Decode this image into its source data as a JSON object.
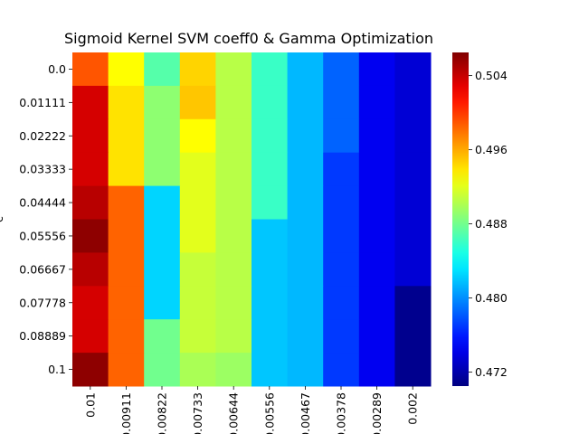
{
  "chart_data": {
    "type": "heatmap",
    "title": "Sigmoid Kernel SVM coeff0 & Gamma Optimization",
    "xlabel": "",
    "ylabel": "c",
    "x_tick_labels": [
      "0.01",
      "0.00911",
      "0.00822",
      "0.00733",
      "0.00644",
      "0.00556",
      "0.00467",
      "0.00378",
      "0.00289",
      "0.002"
    ],
    "y_tick_labels": [
      "0.0",
      "0.01111",
      "0.02222",
      "0.03333",
      "0.04444",
      "0.05556",
      "0.06667",
      "0.07778",
      "0.08889",
      "0.1"
    ],
    "colormap": "jet",
    "vmin": 0.4705,
    "vmax": 0.5065,
    "colorbar_ticks": [
      0.472,
      0.48,
      0.488,
      0.496,
      0.504
    ],
    "colorbar_tick_labels": [
      "0.472",
      "0.480",
      "0.488",
      "0.496",
      "0.504"
    ],
    "values": [
      [
        0.499,
        0.493,
        0.487,
        0.4945,
        0.4905,
        0.486,
        0.4815,
        0.4785,
        0.4745,
        0.4735
      ],
      [
        0.5035,
        0.494,
        0.489,
        0.495,
        0.4905,
        0.486,
        0.4815,
        0.4785,
        0.4745,
        0.4735
      ],
      [
        0.5035,
        0.494,
        0.489,
        0.493,
        0.4905,
        0.486,
        0.4815,
        0.4785,
        0.4745,
        0.4735
      ],
      [
        0.5035,
        0.494,
        0.489,
        0.492,
        0.4905,
        0.486,
        0.4815,
        0.477,
        0.4745,
        0.4735
      ],
      [
        0.5045,
        0.4985,
        0.4825,
        0.492,
        0.4905,
        0.486,
        0.4815,
        0.477,
        0.4745,
        0.4735
      ],
      [
        0.506,
        0.4985,
        0.4825,
        0.492,
        0.4905,
        0.482,
        0.4815,
        0.477,
        0.4745,
        0.4735
      ],
      [
        0.5045,
        0.4985,
        0.4825,
        0.491,
        0.4905,
        0.482,
        0.4815,
        0.477,
        0.4745,
        0.4735
      ],
      [
        0.5035,
        0.4985,
        0.4825,
        0.491,
        0.4905,
        0.482,
        0.4815,
        0.477,
        0.4745,
        0.471
      ],
      [
        0.5035,
        0.4985,
        0.488,
        0.491,
        0.4905,
        0.482,
        0.4815,
        0.477,
        0.4745,
        0.471
      ],
      [
        0.506,
        0.4985,
        0.488,
        0.49,
        0.4895,
        0.482,
        0.4815,
        0.477,
        0.4745,
        0.471
      ]
    ]
  }
}
